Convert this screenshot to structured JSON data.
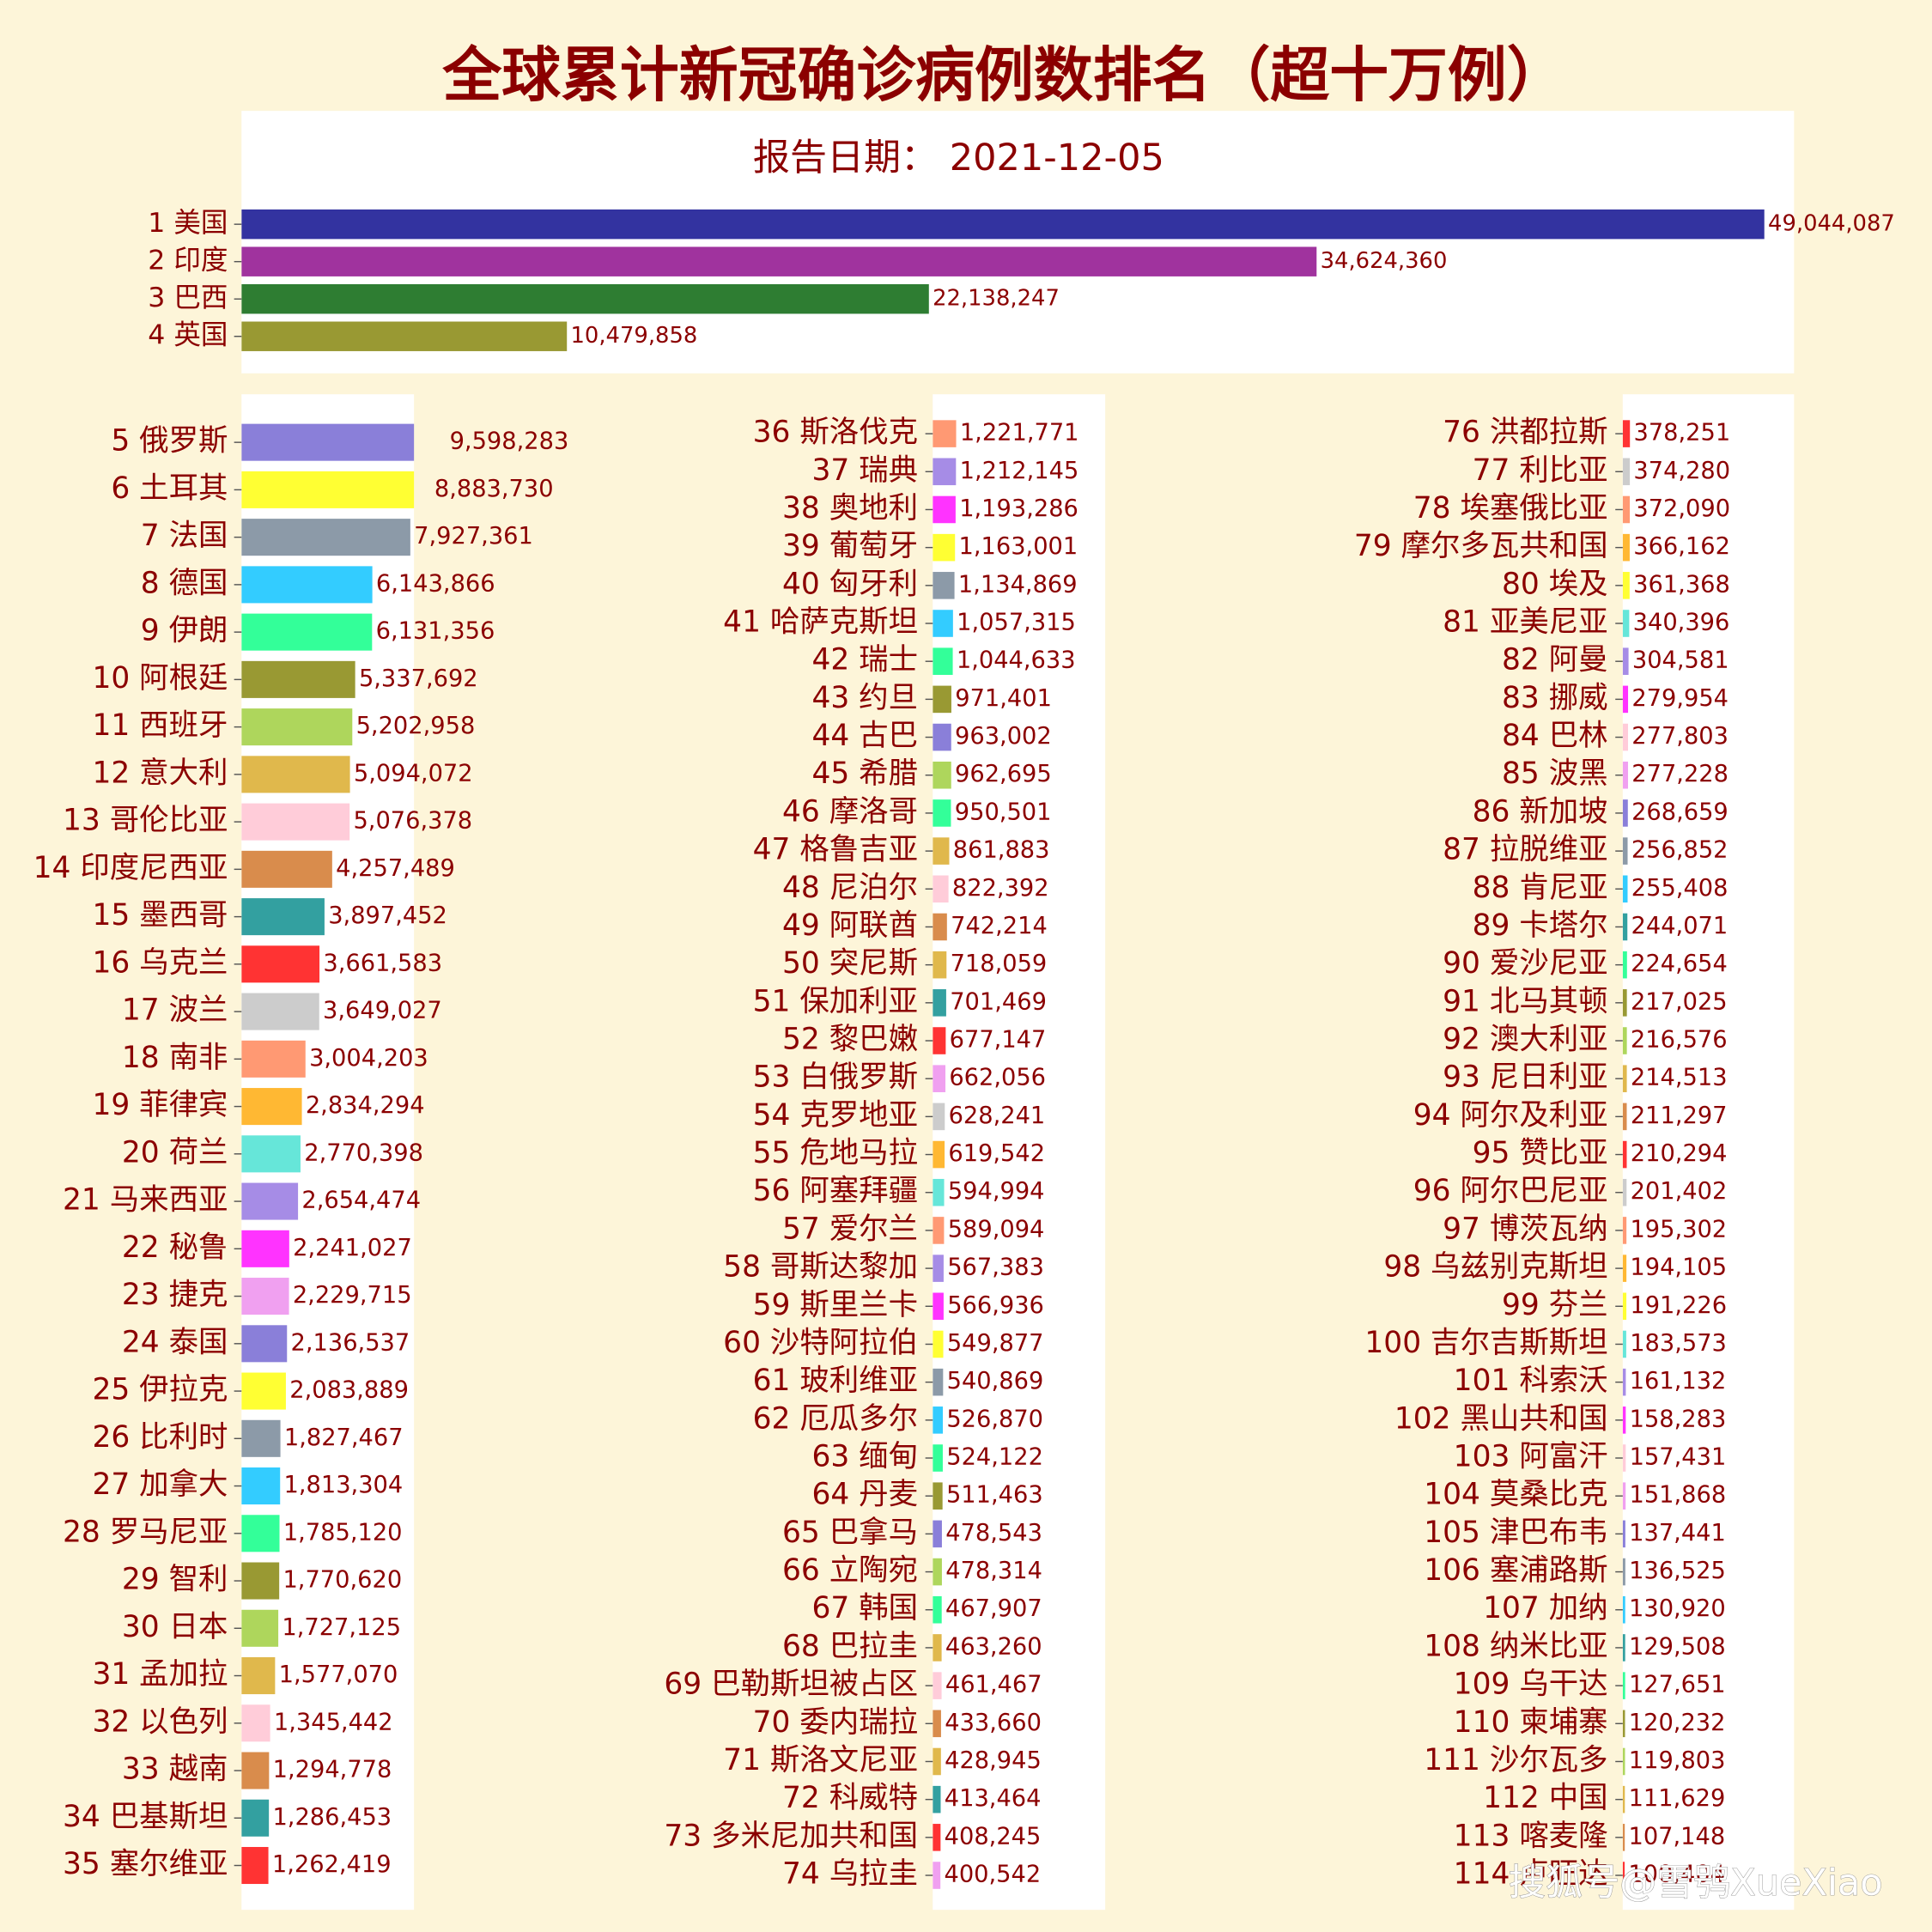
{
  "title": "全球累计新冠确诊病例数排名（超十万例）",
  "subtitle": "报告日期： 2021-12-05",
  "watermark": "搜狐号@雪鸮XueXiao",
  "chart_data": [
    {
      "type": "bar",
      "orientation": "horizontal",
      "xlim": [
        0,
        50000000
      ],
      "categories": [
        "1 美国",
        "2 印度",
        "3 巴西",
        "4 英国"
      ],
      "values": [
        49044087,
        34624360,
        22138247,
        10479858
      ],
      "value_labels": [
        "49,044,087",
        "34,624,360",
        "22,138,247",
        "10,479,858"
      ],
      "colors": [
        "#3333a0",
        "#a0339e",
        "#2e7d32",
        "#999933"
      ]
    },
    {
      "type": "bar",
      "orientation": "horizontal",
      "xlim": [
        0,
        8100000
      ],
      "categories": [
        "5 俄罗斯",
        "6 土耳其",
        "7 法国",
        "8 德国",
        "9 伊朗",
        "10 阿根廷",
        "11 西班牙",
        "12 意大利",
        "13 哥伦比亚",
        "14 印度尼西亚",
        "15 墨西哥",
        "16 乌克兰",
        "17 波兰",
        "18 南非",
        "19 菲律宾",
        "20 荷兰",
        "21 马来西亚",
        "22 秘鲁",
        "23 捷克",
        "24 泰国",
        "25 伊拉克",
        "26 比利时",
        "27 加拿大",
        "28 罗马尼亚",
        "29 智利",
        "30 日本",
        "31 孟加拉",
        "32 以色列",
        "33 越南",
        "34 巴基斯坦",
        "35 塞尔维亚"
      ],
      "values": [
        9598283,
        8883730,
        7927361,
        6143866,
        6131356,
        5337692,
        5202958,
        5094072,
        5076378,
        4257489,
        3897452,
        3661583,
        3649027,
        3004203,
        2834294,
        2770398,
        2654474,
        2241027,
        2229715,
        2136537,
        2083889,
        1827467,
        1813304,
        1785120,
        1770620,
        1727125,
        1577070,
        1345442,
        1294778,
        1286453,
        1262419
      ],
      "value_labels": [
        "9,598,283",
        "8,883,730",
        "7,927,361",
        "6,143,866",
        "6,131,356",
        "5,337,692",
        "5,202,958",
        "5,094,072",
        "5,076,378",
        "4,257,489",
        "3,897,452",
        "3,661,583",
        "3,649,027",
        "3,004,203",
        "2,834,294",
        "2,770,398",
        "2,654,474",
        "2,241,027",
        "2,229,715",
        "2,136,537",
        "2,083,889",
        "1,827,467",
        "1,813,304",
        "1,785,120",
        "1,770,620",
        "1,727,125",
        "1,577,070",
        "1,345,442",
        "1,294,778",
        "1,286,453",
        "1,262,419"
      ],
      "colors": [
        "#8a7fd9",
        "#ffff33",
        "#8c9aa8",
        "#33ccff",
        "#33ff99",
        "#999933",
        "#aed65c",
        "#e0b84c",
        "#ffccd9",
        "#d98c4c",
        "#33a0a0",
        "#ff3333",
        "#cccccc",
        "#ff9973",
        "#ffb833",
        "#66e6d9",
        "#a68ce6",
        "#ff33ff",
        "#f0a0f0",
        "#8a7fd9",
        "#ffff33",
        "#8c9aa8",
        "#33ccff",
        "#33ff99",
        "#999933",
        "#aed65c",
        "#e0b84c",
        "#ffccd9",
        "#d98c4c",
        "#33a0a0",
        "#ff3333"
      ]
    },
    {
      "type": "bar",
      "orientation": "horizontal",
      "xlim": [
        0,
        9000000
      ],
      "categories": [
        "36 斯洛伐克",
        "37 瑞典",
        "38 奥地利",
        "39 葡萄牙",
        "40 匈牙利",
        "41 哈萨克斯坦",
        "42 瑞士",
        "43 约旦",
        "44 古巴",
        "45 希腊",
        "46 摩洛哥",
        "47 格鲁吉亚",
        "48 尼泊尔",
        "49 阿联酋",
        "50 突尼斯",
        "51 保加利亚",
        "52 黎巴嫩",
        "53 白俄罗斯",
        "54 克罗地亚",
        "55 危地马拉",
        "56 阿塞拜疆",
        "57 爱尔兰",
        "58 哥斯达黎加",
        "59 斯里兰卡",
        "60 沙特阿拉伯",
        "61 玻利维亚",
        "62 厄瓜多尔",
        "63 缅甸",
        "64 丹麦",
        "65 巴拿马",
        "66 立陶宛",
        "67 韩国",
        "68 巴拉圭",
        "69 巴勒斯坦被占区",
        "70 委内瑞拉",
        "71 斯洛文尼亚",
        "72 科威特",
        "73 多米尼加共和国",
        "74 乌拉圭"
      ],
      "values": [
        1221771,
        1212145,
        1193286,
        1163001,
        1134869,
        1057315,
        1044633,
        971401,
        963002,
        962695,
        950501,
        861883,
        822392,
        742214,
        718059,
        701469,
        677147,
        662056,
        628241,
        619542,
        594994,
        589094,
        567383,
        566936,
        549877,
        540869,
        526870,
        524122,
        511463,
        478543,
        478314,
        467907,
        463260,
        461467,
        433660,
        428945,
        413464,
        408245,
        400542
      ],
      "value_labels": [
        "1,221,771",
        "1,212,145",
        "1,193,286",
        "1,163,001",
        "1,134,869",
        "1,057,315",
        "1,044,633",
        "971,401",
        "963,002",
        "962,695",
        "950,501",
        "861,883",
        "822,392",
        "742,214",
        "718,059",
        "701,469",
        "677,147",
        "662,056",
        "628,241",
        "619,542",
        "594,994",
        "589,094",
        "567,383",
        "566,936",
        "549,877",
        "540,869",
        "526,870",
        "524,122",
        "511,463",
        "478,543",
        "478,314",
        "467,907",
        "463,260",
        "461,467",
        "433,660",
        "428,945",
        "413,464",
        "408,245",
        "400,542"
      ],
      "colors": [
        "#ff9973",
        "#a68ce6",
        "#ff33ff",
        "#ffff33",
        "#8c9aa8",
        "#33ccff",
        "#33ff99",
        "#999933",
        "#8a7fd9",
        "#aed65c",
        "#33ff99",
        "#e0b84c",
        "#ffccd9",
        "#d98c4c",
        "#e0b84c",
        "#33a0a0",
        "#ff3333",
        "#f0a0f0",
        "#cccccc",
        "#ffb833",
        "#66e6d9",
        "#ff9973",
        "#a68ce6",
        "#ff33ff",
        "#ffff33",
        "#8c9aa8",
        "#33ccff",
        "#33ff99",
        "#999933",
        "#8a7fd9",
        "#aed65c",
        "#33ff99",
        "#e0b84c",
        "#ffccd9",
        "#d98c4c",
        "#e0b84c",
        "#33a0a0",
        "#ff3333",
        "#f0a0f0"
      ]
    },
    {
      "type": "bar",
      "orientation": "horizontal",
      "xlim": [
        0,
        9000000
      ],
      "categories": [
        "76 洪都拉斯",
        "77 利比亚",
        "78 埃塞俄比亚",
        "79 摩尔多瓦共和国",
        "80 埃及",
        "81 亚美尼亚",
        "82 阿曼",
        "83 挪威",
        "84 巴林",
        "85 波黑",
        "86 新加坡",
        "87 拉脱维亚",
        "88 肯尼亚",
        "89 卡塔尔",
        "90 爱沙尼亚",
        "91 北马其顿",
        "92 澳大利亚",
        "93 尼日利亚",
        "94 阿尔及利亚",
        "95 赞比亚",
        "96 阿尔巴尼亚",
        "97 博茨瓦纳",
        "98 乌兹别克斯坦",
        "99 芬兰",
        "100 吉尔吉斯斯坦",
        "101 科索沃",
        "102 黑山共和国",
        "103 阿富汗",
        "104 莫桑比克",
        "105 津巴布韦",
        "106 塞浦路斯",
        "107 加纳",
        "108 纳米比亚",
        "109 乌干达",
        "110 柬埔寨",
        "111 沙尔瓦多",
        "112 中国",
        "113 喀麦隆",
        "114 卢旺达"
      ],
      "values": [
        378251,
        374280,
        372090,
        366162,
        361368,
        340396,
        304581,
        279954,
        277803,
        277228,
        268659,
        256852,
        255408,
        244071,
        224654,
        217025,
        216576,
        214513,
        211297,
        210294,
        201402,
        195302,
        194105,
        191226,
        183573,
        161132,
        158283,
        157431,
        151868,
        137441,
        136525,
        130920,
        129508,
        127651,
        120232,
        119803,
        111629,
        107148,
        100404
      ],
      "value_labels": [
        "378,251",
        "374,280",
        "372,090",
        "366,162",
        "361,368",
        "340,396",
        "304,581",
        "279,954",
        "277,803",
        "277,228",
        "268,659",
        "256,852",
        "255,408",
        "244,071",
        "224,654",
        "217,025",
        "216,576",
        "214,513",
        "211,297",
        "210,294",
        "201,402",
        "195,302",
        "194,105",
        "191,226",
        "183,573",
        "161,132",
        "158,283",
        "157,431",
        "151,868",
        "137,441",
        "136,525",
        "130,920",
        "129,508",
        "127,651",
        "120,232",
        "119,803",
        "111,629",
        "107,148",
        "100,404"
      ],
      "colors": [
        "#ff3333",
        "#cccccc",
        "#ff9973",
        "#ffb833",
        "#ffff33",
        "#66e6d9",
        "#a68ce6",
        "#ff33ff",
        "#ffccd9",
        "#f0a0f0",
        "#8a7fd9",
        "#8c9aa8",
        "#33ccff",
        "#33a0a0",
        "#33ff99",
        "#999933",
        "#aed65c",
        "#e0b84c",
        "#d98c4c",
        "#ff3333",
        "#cccccc",
        "#ff9973",
        "#ffb833",
        "#ffff33",
        "#66e6d9",
        "#a68ce6",
        "#ff33ff",
        "#ffccd9",
        "#f0a0f0",
        "#8a7fd9",
        "#8c9aa8",
        "#33ccff",
        "#33a0a0",
        "#33ff99",
        "#999933",
        "#aed65c",
        "#e0b84c",
        "#d98c4c",
        "#ff3333"
      ]
    }
  ]
}
